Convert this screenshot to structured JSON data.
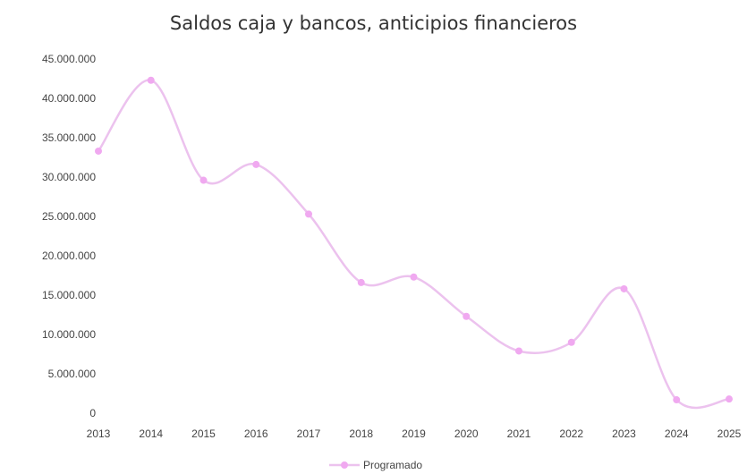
{
  "chart_data": {
    "type": "line",
    "title": "Saldos caja y bancos, anticipios financieros",
    "categories": [
      "2013",
      "2014",
      "2015",
      "2016",
      "2017",
      "2018",
      "2019",
      "2020",
      "2021",
      "2022",
      "2023",
      "2024",
      "2025"
    ],
    "series": [
      {
        "name": "Programado",
        "values": [
          33300000,
          42300000,
          29600000,
          31600000,
          25300000,
          16600000,
          17300000,
          12300000,
          7900000,
          9000000,
          15800000,
          1700000,
          1800000
        ]
      }
    ],
    "ylim": [
      0,
      45000000
    ],
    "yticks": [
      0,
      5000000,
      10000000,
      15000000,
      20000000,
      25000000,
      30000000,
      35000000,
      40000000,
      45000000
    ],
    "ytick_labels": [
      "0",
      "5.000.000",
      "10.000.000",
      "15.000.000",
      "20.000.000",
      "25.000.000",
      "30.000.000",
      "35.000.000",
      "40.000.000",
      "45.000.000"
    ],
    "smooth": true,
    "grid": false,
    "legend_position": "bottom",
    "colors": {
      "series": "#ecc2ee",
      "marker": "#f0a9f0",
      "text": "#444444"
    }
  }
}
